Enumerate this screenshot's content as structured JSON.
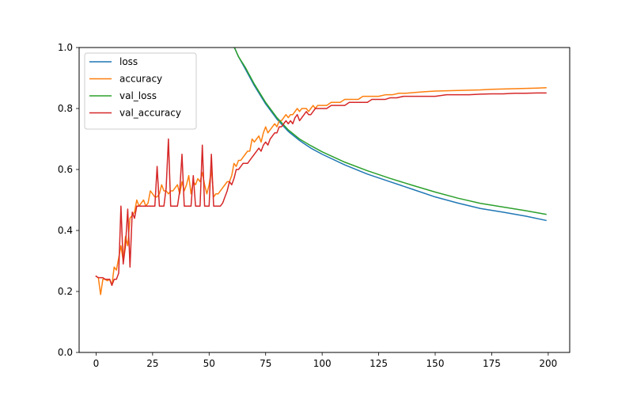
{
  "chart_data": {
    "type": "line",
    "title": "",
    "xlabel": "",
    "ylabel": "",
    "xlim": [
      -7.5,
      209.5
    ],
    "ylim": [
      0.0,
      1.0
    ],
    "x_ticks": [
      0,
      25,
      50,
      75,
      100,
      125,
      150,
      175,
      200
    ],
    "x_tick_labels": [
      "0",
      "25",
      "50",
      "75",
      "100",
      "125",
      "150",
      "175",
      "200"
    ],
    "y_ticks": [
      0.0,
      0.2,
      0.4,
      0.6,
      0.8,
      1.0
    ],
    "y_tick_labels": [
      "0.0",
      "0.2",
      "0.4",
      "0.6",
      "0.8",
      "1.0"
    ],
    "grid": false,
    "legend_position": "top-left",
    "series": [
      {
        "name": "loss",
        "color": "#1f77b4",
        "points": [
          [
            60,
            1.02
          ],
          [
            63,
            0.97
          ],
          [
            66,
            0.93
          ],
          [
            70,
            0.875
          ],
          [
            75,
            0.815
          ],
          [
            80,
            0.765
          ],
          [
            85,
            0.725
          ],
          [
            90,
            0.695
          ],
          [
            95,
            0.67
          ],
          [
            100,
            0.65
          ],
          [
            110,
            0.615
          ],
          [
            120,
            0.585
          ],
          [
            130,
            0.56
          ],
          [
            140,
            0.535
          ],
          [
            150,
            0.51
          ],
          [
            160,
            0.49
          ],
          [
            170,
            0.472
          ],
          [
            180,
            0.46
          ],
          [
            190,
            0.447
          ],
          [
            199,
            0.433
          ]
        ]
      },
      {
        "name": "accuracy",
        "color": "#ff7f0e",
        "points": [
          [
            0,
            0.25
          ],
          [
            1,
            0.245
          ],
          [
            2,
            0.19
          ],
          [
            3,
            0.24
          ],
          [
            4,
            0.24
          ],
          [
            5,
            0.235
          ],
          [
            6,
            0.24
          ],
          [
            7,
            0.22
          ],
          [
            8,
            0.28
          ],
          [
            9,
            0.27
          ],
          [
            10,
            0.31
          ],
          [
            11,
            0.35
          ],
          [
            12,
            0.3
          ],
          [
            13,
            0.38
          ],
          [
            14,
            0.35
          ],
          [
            15,
            0.44
          ],
          [
            16,
            0.45
          ],
          [
            17,
            0.46
          ],
          [
            18,
            0.5
          ],
          [
            19,
            0.48
          ],
          [
            20,
            0.49
          ],
          [
            21,
            0.5
          ],
          [
            22,
            0.48
          ],
          [
            23,
            0.49
          ],
          [
            24,
            0.53
          ],
          [
            25,
            0.52
          ],
          [
            26,
            0.51
          ],
          [
            27,
            0.51
          ],
          [
            28,
            0.52
          ],
          [
            29,
            0.55
          ],
          [
            30,
            0.53
          ],
          [
            31,
            0.53
          ],
          [
            32,
            0.52
          ],
          [
            33,
            0.53
          ],
          [
            34,
            0.53
          ],
          [
            35,
            0.54
          ],
          [
            36,
            0.55
          ],
          [
            37,
            0.52
          ],
          [
            38,
            0.56
          ],
          [
            39,
            0.53
          ],
          [
            40,
            0.55
          ],
          [
            41,
            0.58
          ],
          [
            42,
            0.52
          ],
          [
            43,
            0.56
          ],
          [
            44,
            0.55
          ],
          [
            45,
            0.57
          ],
          [
            46,
            0.56
          ],
          [
            47,
            0.59
          ],
          [
            48,
            0.55
          ],
          [
            49,
            0.52
          ],
          [
            50,
            0.55
          ],
          [
            51,
            0.6
          ],
          [
            52,
            0.51
          ],
          [
            53,
            0.52
          ],
          [
            54,
            0.52
          ],
          [
            55,
            0.53
          ],
          [
            56,
            0.54
          ],
          [
            57,
            0.55
          ],
          [
            58,
            0.56
          ],
          [
            59,
            0.56
          ],
          [
            60,
            0.58
          ],
          [
            61,
            0.62
          ],
          [
            62,
            0.61
          ],
          [
            63,
            0.63
          ],
          [
            64,
            0.63
          ],
          [
            65,
            0.64
          ],
          [
            66,
            0.65
          ],
          [
            67,
            0.66
          ],
          [
            68,
            0.66
          ],
          [
            69,
            0.7
          ],
          [
            70,
            0.69
          ],
          [
            71,
            0.7
          ],
          [
            72,
            0.71
          ],
          [
            73,
            0.69
          ],
          [
            74,
            0.72
          ],
          [
            75,
            0.74
          ],
          [
            76,
            0.72
          ],
          [
            77,
            0.73
          ],
          [
            78,
            0.74
          ],
          [
            79,
            0.75
          ],
          [
            80,
            0.74
          ],
          [
            81,
            0.76
          ],
          [
            82,
            0.76
          ],
          [
            83,
            0.77
          ],
          [
            84,
            0.78
          ],
          [
            85,
            0.77
          ],
          [
            86,
            0.78
          ],
          [
            87,
            0.78
          ],
          [
            88,
            0.79
          ],
          [
            89,
            0.8
          ],
          [
            90,
            0.79
          ],
          [
            91,
            0.8
          ],
          [
            92,
            0.8
          ],
          [
            93,
            0.8
          ],
          [
            94,
            0.79
          ],
          [
            95,
            0.8
          ],
          [
            96,
            0.81
          ],
          [
            97,
            0.8
          ],
          [
            98,
            0.81
          ],
          [
            99,
            0.81
          ],
          [
            100,
            0.81
          ],
          [
            102,
            0.81
          ],
          [
            104,
            0.82
          ],
          [
            106,
            0.82
          ],
          [
            108,
            0.82
          ],
          [
            110,
            0.83
          ],
          [
            112,
            0.83
          ],
          [
            114,
            0.83
          ],
          [
            116,
            0.83
          ],
          [
            118,
            0.84
          ],
          [
            120,
            0.84
          ],
          [
            122,
            0.84
          ],
          [
            125,
            0.84
          ],
          [
            128,
            0.845
          ],
          [
            131,
            0.845
          ],
          [
            134,
            0.85
          ],
          [
            137,
            0.85
          ],
          [
            140,
            0.852
          ],
          [
            145,
            0.855
          ],
          [
            150,
            0.857
          ],
          [
            155,
            0.858
          ],
          [
            160,
            0.859
          ],
          [
            165,
            0.86
          ],
          [
            170,
            0.861
          ],
          [
            175,
            0.863
          ],
          [
            180,
            0.864
          ],
          [
            185,
            0.865
          ],
          [
            190,
            0.866
          ],
          [
            195,
            0.867
          ],
          [
            199,
            0.868
          ]
        ]
      },
      {
        "name": "val_loss",
        "color": "#2ca02c",
        "points": [
          [
            60,
            1.02
          ],
          [
            63,
            0.97
          ],
          [
            66,
            0.935
          ],
          [
            70,
            0.88
          ],
          [
            75,
            0.82
          ],
          [
            80,
            0.77
          ],
          [
            85,
            0.73
          ],
          [
            90,
            0.7
          ],
          [
            95,
            0.678
          ],
          [
            100,
            0.658
          ],
          [
            110,
            0.624
          ],
          [
            120,
            0.596
          ],
          [
            130,
            0.571
          ],
          [
            140,
            0.548
          ],
          [
            150,
            0.526
          ],
          [
            160,
            0.506
          ],
          [
            170,
            0.489
          ],
          [
            180,
            0.477
          ],
          [
            190,
            0.465
          ],
          [
            199,
            0.453
          ]
        ]
      },
      {
        "name": "val_accuracy",
        "color": "#d62728",
        "points": [
          [
            0,
            0.25
          ],
          [
            1,
            0.245
          ],
          [
            2,
            0.245
          ],
          [
            3,
            0.245
          ],
          [
            4,
            0.24
          ],
          [
            5,
            0.24
          ],
          [
            6,
            0.24
          ],
          [
            7,
            0.22
          ],
          [
            8,
            0.24
          ],
          [
            9,
            0.24
          ],
          [
            10,
            0.26
          ],
          [
            11,
            0.48
          ],
          [
            12,
            0.29
          ],
          [
            13,
            0.35
          ],
          [
            14,
            0.47
          ],
          [
            15,
            0.28
          ],
          [
            16,
            0.46
          ],
          [
            17,
            0.44
          ],
          [
            18,
            0.48
          ],
          [
            19,
            0.48
          ],
          [
            20,
            0.48
          ],
          [
            21,
            0.48
          ],
          [
            22,
            0.48
          ],
          [
            23,
            0.48
          ],
          [
            24,
            0.48
          ],
          [
            25,
            0.48
          ],
          [
            26,
            0.48
          ],
          [
            27,
            0.61
          ],
          [
            28,
            0.48
          ],
          [
            29,
            0.48
          ],
          [
            30,
            0.48
          ],
          [
            31,
            0.54
          ],
          [
            32,
            0.7
          ],
          [
            33,
            0.48
          ],
          [
            34,
            0.48
          ],
          [
            35,
            0.48
          ],
          [
            36,
            0.48
          ],
          [
            37,
            0.53
          ],
          [
            38,
            0.65
          ],
          [
            39,
            0.48
          ],
          [
            40,
            0.48
          ],
          [
            41,
            0.48
          ],
          [
            42,
            0.48
          ],
          [
            43,
            0.58
          ],
          [
            44,
            0.48
          ],
          [
            45,
            0.48
          ],
          [
            46,
            0.48
          ],
          [
            47,
            0.68
          ],
          [
            48,
            0.48
          ],
          [
            49,
            0.48
          ],
          [
            50,
            0.48
          ],
          [
            51,
            0.65
          ],
          [
            52,
            0.48
          ],
          [
            53,
            0.48
          ],
          [
            54,
            0.48
          ],
          [
            55,
            0.48
          ],
          [
            56,
            0.49
          ],
          [
            57,
            0.51
          ],
          [
            58,
            0.53
          ],
          [
            59,
            0.56
          ],
          [
            60,
            0.55
          ],
          [
            61,
            0.57
          ],
          [
            62,
            0.6
          ],
          [
            63,
            0.6
          ],
          [
            64,
            0.61
          ],
          [
            65,
            0.62
          ],
          [
            66,
            0.62
          ],
          [
            67,
            0.62
          ],
          [
            68,
            0.63
          ],
          [
            69,
            0.64
          ],
          [
            70,
            0.65
          ],
          [
            71,
            0.66
          ],
          [
            72,
            0.67
          ],
          [
            73,
            0.66
          ],
          [
            74,
            0.68
          ],
          [
            75,
            0.69
          ],
          [
            76,
            0.68
          ],
          [
            77,
            0.7
          ],
          [
            78,
            0.71
          ],
          [
            79,
            0.72
          ],
          [
            80,
            0.72
          ],
          [
            81,
            0.74
          ],
          [
            82,
            0.74
          ],
          [
            83,
            0.75
          ],
          [
            84,
            0.76
          ],
          [
            85,
            0.75
          ],
          [
            86,
            0.76
          ],
          [
            87,
            0.75
          ],
          [
            88,
            0.77
          ],
          [
            89,
            0.78
          ],
          [
            90,
            0.76
          ],
          [
            91,
            0.77
          ],
          [
            92,
            0.78
          ],
          [
            93,
            0.79
          ],
          [
            94,
            0.78
          ],
          [
            95,
            0.78
          ],
          [
            96,
            0.79
          ],
          [
            97,
            0.8
          ],
          [
            98,
            0.8
          ],
          [
            100,
            0.8
          ],
          [
            102,
            0.8
          ],
          [
            104,
            0.81
          ],
          [
            106,
            0.81
          ],
          [
            108,
            0.81
          ],
          [
            110,
            0.81
          ],
          [
            112,
            0.82
          ],
          [
            114,
            0.82
          ],
          [
            116,
            0.82
          ],
          [
            118,
            0.82
          ],
          [
            120,
            0.82
          ],
          [
            122,
            0.83
          ],
          [
            124,
            0.83
          ],
          [
            126,
            0.83
          ],
          [
            128,
            0.83
          ],
          [
            130,
            0.835
          ],
          [
            133,
            0.835
          ],
          [
            136,
            0.84
          ],
          [
            140,
            0.84
          ],
          [
            145,
            0.84
          ],
          [
            150,
            0.84
          ],
          [
            155,
            0.845
          ],
          [
            160,
            0.845
          ],
          [
            165,
            0.845
          ],
          [
            170,
            0.847
          ],
          [
            175,
            0.848
          ],
          [
            180,
            0.848
          ],
          [
            185,
            0.85
          ],
          [
            190,
            0.85
          ],
          [
            195,
            0.851
          ],
          [
            199,
            0.851
          ]
        ]
      }
    ]
  }
}
